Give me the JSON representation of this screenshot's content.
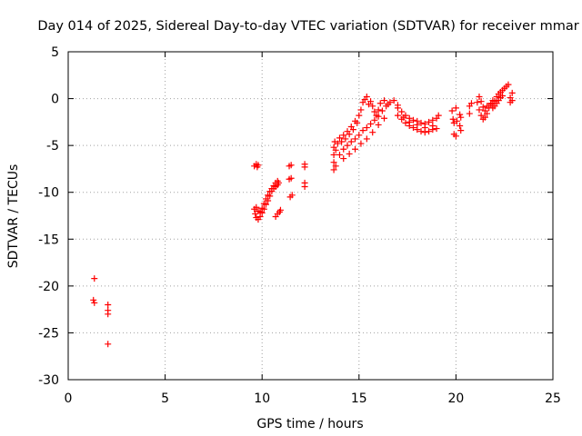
{
  "chart_data": {
    "type": "scatter",
    "title": "Day 014 of 2025, Sidereal Day-to-day VTEC variation (SDTVAR) for receiver mmar",
    "xlabel": "GPS time / hours",
    "ylabel": "SDTVAR / TECUs",
    "xlim": [
      0,
      25
    ],
    "ylim": [
      -30,
      5
    ],
    "xticks": [
      0,
      5,
      10,
      15,
      20,
      25
    ],
    "yticks": [
      -30,
      -25,
      -20,
      -15,
      -10,
      -5,
      0,
      5
    ],
    "grid": true,
    "marker": "+",
    "color": "#ff0000",
    "series": [
      {
        "name": "SDTVAR",
        "points": [
          [
            1.35,
            -19.2
          ],
          [
            1.3,
            -21.5
          ],
          [
            1.35,
            -21.8
          ],
          [
            2.05,
            -22.0
          ],
          [
            2.05,
            -22.6
          ],
          [
            2.05,
            -23.0
          ],
          [
            2.05,
            -26.2
          ],
          [
            9.6,
            -7.2
          ],
          [
            9.7,
            -7.0
          ],
          [
            9.75,
            -7.3
          ],
          [
            9.8,
            -7.1
          ],
          [
            9.6,
            -11.8
          ],
          [
            9.65,
            -12.3
          ],
          [
            9.7,
            -12.7
          ],
          [
            9.8,
            -12.9
          ],
          [
            9.9,
            -12.6
          ],
          [
            10.0,
            -12.2
          ],
          [
            10.1,
            -11.8
          ],
          [
            10.2,
            -11.3
          ],
          [
            10.3,
            -10.9
          ],
          [
            10.4,
            -10.4
          ],
          [
            10.5,
            -9.9
          ],
          [
            10.6,
            -9.6
          ],
          [
            10.7,
            -9.4
          ],
          [
            10.8,
            -9.2
          ],
          [
            10.85,
            -9.0
          ],
          [
            9.7,
            -11.6
          ],
          [
            9.8,
            -12.0
          ],
          [
            9.9,
            -12.1
          ],
          [
            10.0,
            -11.7
          ],
          [
            10.1,
            -11.2
          ],
          [
            10.2,
            -10.7
          ],
          [
            10.3,
            -10.3
          ],
          [
            10.4,
            -9.9
          ],
          [
            10.5,
            -9.6
          ],
          [
            10.6,
            -9.3
          ],
          [
            10.7,
            -9.0
          ],
          [
            10.8,
            -8.8
          ],
          [
            10.7,
            -12.6
          ],
          [
            10.8,
            -12.3
          ],
          [
            10.9,
            -12.1
          ],
          [
            10.95,
            -11.9
          ],
          [
            11.4,
            -7.2
          ],
          [
            11.5,
            -7.1
          ],
          [
            11.4,
            -8.6
          ],
          [
            11.5,
            -8.5
          ],
          [
            11.45,
            -10.5
          ],
          [
            11.55,
            -10.3
          ],
          [
            12.2,
            -7.0
          ],
          [
            12.2,
            -7.3
          ],
          [
            12.2,
            -9.0
          ],
          [
            12.2,
            -9.4
          ],
          [
            13.7,
            -7.6
          ],
          [
            13.7,
            -6.8
          ],
          [
            13.7,
            -6.0
          ],
          [
            13.7,
            -5.2
          ],
          [
            13.75,
            -4.6
          ],
          [
            13.8,
            -7.2
          ],
          [
            13.8,
            -5.5
          ],
          [
            13.9,
            -4.8
          ],
          [
            14.0,
            -4.2
          ],
          [
            14.1,
            -4.6
          ],
          [
            14.2,
            -3.9
          ],
          [
            14.3,
            -4.3
          ],
          [
            14.4,
            -3.5
          ],
          [
            14.5,
            -3.8
          ],
          [
            14.6,
            -3.0
          ],
          [
            14.7,
            -3.3
          ],
          [
            14.8,
            -2.4
          ],
          [
            14.9,
            -2.6
          ],
          [
            15.0,
            -1.8
          ],
          [
            15.1,
            -1.2
          ],
          [
            15.2,
            -0.4
          ],
          [
            15.3,
            -0.1
          ],
          [
            15.4,
            0.2
          ],
          [
            15.5,
            -0.6
          ],
          [
            14.0,
            -6.0
          ],
          [
            14.2,
            -5.4
          ],
          [
            14.4,
            -5.0
          ],
          [
            14.6,
            -4.6
          ],
          [
            14.8,
            -4.3
          ],
          [
            15.0,
            -3.9
          ],
          [
            15.2,
            -3.4
          ],
          [
            15.4,
            -3.1
          ],
          [
            15.6,
            -2.7
          ],
          [
            15.8,
            -2.3
          ],
          [
            16.0,
            -1.9
          ],
          [
            16.2,
            -1.3
          ],
          [
            16.4,
            -0.8
          ],
          [
            16.6,
            -0.4
          ],
          [
            16.8,
            -0.2
          ],
          [
            17.0,
            -0.7
          ],
          [
            14.2,
            -6.4
          ],
          [
            14.5,
            -5.9
          ],
          [
            14.8,
            -5.4
          ],
          [
            15.1,
            -4.8
          ],
          [
            15.4,
            -4.3
          ],
          [
            15.7,
            -3.6
          ],
          [
            16.0,
            -2.8
          ],
          [
            16.3,
            -2.1
          ],
          [
            15.6,
            -0.3
          ],
          [
            15.7,
            -0.8
          ],
          [
            15.8,
            -1.4
          ],
          [
            15.9,
            -1.8
          ],
          [
            16.0,
            -1.2
          ],
          [
            16.1,
            -0.5
          ],
          [
            16.3,
            -0.2
          ],
          [
            16.5,
            -0.6
          ],
          [
            17.0,
            -1.0
          ],
          [
            17.2,
            -1.4
          ],
          [
            17.4,
            -1.8
          ],
          [
            17.6,
            -2.1
          ],
          [
            17.8,
            -2.3
          ],
          [
            18.0,
            -2.4
          ],
          [
            18.2,
            -2.6
          ],
          [
            18.4,
            -2.7
          ],
          [
            18.6,
            -2.5
          ],
          [
            18.8,
            -2.3
          ],
          [
            19.0,
            -2.1
          ],
          [
            19.1,
            -1.8
          ],
          [
            17.2,
            -2.2
          ],
          [
            17.4,
            -2.6
          ],
          [
            17.6,
            -2.9
          ],
          [
            17.8,
            -3.1
          ],
          [
            18.0,
            -3.3
          ],
          [
            18.2,
            -3.5
          ],
          [
            18.4,
            -3.6
          ],
          [
            18.6,
            -3.5
          ],
          [
            18.8,
            -3.3
          ],
          [
            19.0,
            -3.2
          ],
          [
            17.0,
            -1.8
          ],
          [
            17.3,
            -2.0
          ],
          [
            17.6,
            -2.5
          ],
          [
            18.0,
            -2.8
          ],
          [
            18.4,
            -3.1
          ],
          [
            18.8,
            -2.9
          ],
          [
            19.8,
            -1.3
          ],
          [
            19.85,
            -2.2
          ],
          [
            19.9,
            -2.6
          ],
          [
            19.9,
            -3.8
          ],
          [
            20.0,
            -4.0
          ],
          [
            20.0,
            -1.0
          ],
          [
            20.05,
            -2.4
          ],
          [
            20.2,
            -1.7
          ],
          [
            20.2,
            -2.9
          ],
          [
            20.25,
            -2.0
          ],
          [
            20.25,
            -3.4
          ],
          [
            20.7,
            -0.8
          ],
          [
            20.7,
            -1.6
          ],
          [
            20.8,
            -0.5
          ],
          [
            21.1,
            -0.4
          ],
          [
            21.2,
            -1.2
          ],
          [
            21.3,
            -1.8
          ],
          [
            21.4,
            -2.2
          ],
          [
            21.5,
            -2.0
          ],
          [
            21.6,
            -1.6
          ],
          [
            21.7,
            -1.0
          ],
          [
            21.8,
            -0.5
          ],
          [
            21.9,
            -0.2
          ],
          [
            21.2,
            0.2
          ],
          [
            21.3,
            -0.3
          ],
          [
            21.4,
            -0.9
          ],
          [
            21.5,
            -1.3
          ],
          [
            21.6,
            -0.8
          ],
          [
            21.9,
            -0.8
          ],
          [
            22.0,
            -0.3
          ],
          [
            22.1,
            0.2
          ],
          [
            22.2,
            0.5
          ],
          [
            22.3,
            0.7
          ],
          [
            22.4,
            0.9
          ],
          [
            22.5,
            1.1
          ],
          [
            22.6,
            1.3
          ],
          [
            22.7,
            1.5
          ],
          [
            21.8,
            -0.6
          ],
          [
            21.9,
            -1.0
          ],
          [
            22.0,
            -0.8
          ],
          [
            22.1,
            -0.5
          ],
          [
            22.2,
            -0.2
          ],
          [
            22.3,
            0.1
          ],
          [
            22.4,
            0.3
          ],
          [
            22.8,
            0.1
          ],
          [
            22.8,
            -0.4
          ],
          [
            22.9,
            0.6
          ],
          [
            22.9,
            -0.2
          ]
        ]
      }
    ]
  }
}
